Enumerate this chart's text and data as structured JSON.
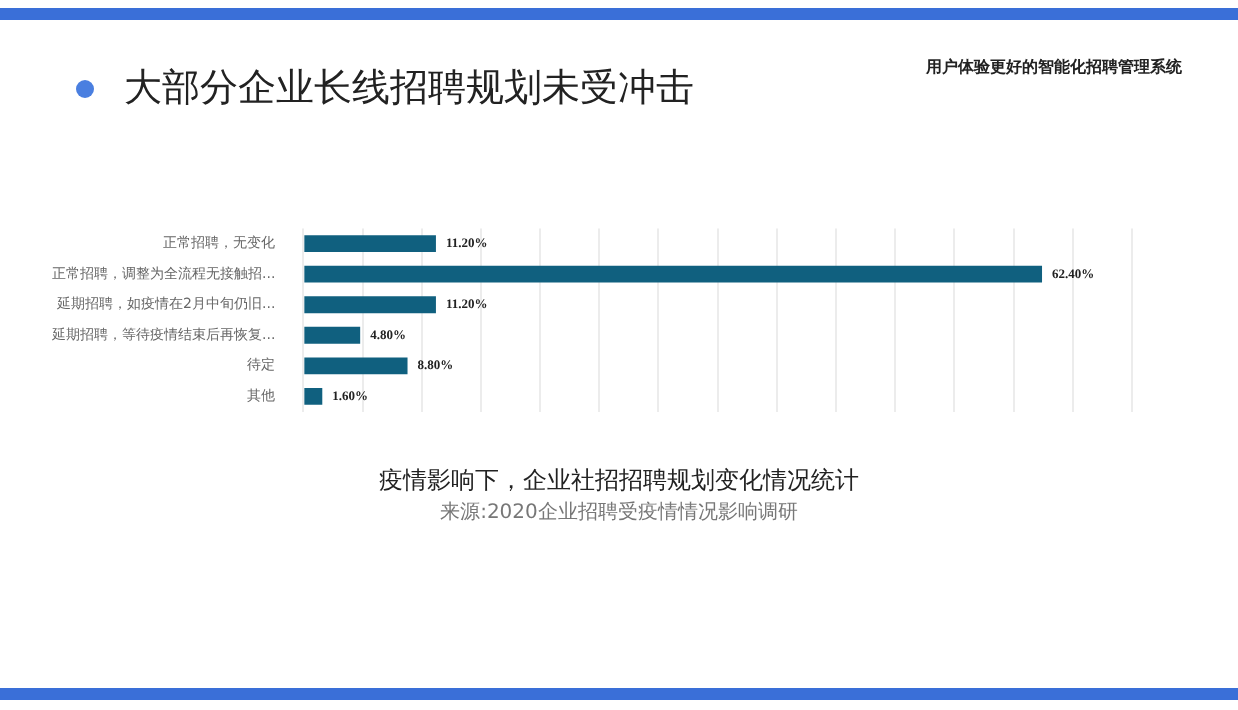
{
  "chart_data": {
    "type": "bar",
    "orientation": "horizontal",
    "title": "大部分企业长线招聘规划未受冲击",
    "categories": [
      "正常招聘，无变化",
      "正常招聘，调整为全流程无接触招...",
      "延期招聘，如疫情在2月中旬仍旧...",
      "延期招聘，等待疫情结束后再恢复...",
      "待定",
      "其他"
    ],
    "values": [
      11.2,
      62.4,
      11.2,
      4.8,
      8.8,
      1.6
    ],
    "value_labels": [
      "11.20%",
      "62.40%",
      "11.20%",
      "4.80%",
      "8.80%",
      "1.60%"
    ],
    "color": "#10607f",
    "xlim": [
      0,
      70
    ],
    "xticks": [
      {
        "value": 0,
        "label": null
      },
      {
        "value": 5,
        "label": null
      },
      {
        "value": 10,
        "label": null
      },
      {
        "value": 15,
        "label": null
      },
      {
        "value": 20,
        "label": null
      },
      {
        "value": 25,
        "label": null
      },
      {
        "value": 30,
        "label": null
      },
      {
        "value": 35,
        "label": null
      },
      {
        "value": 40,
        "label": null
      },
      {
        "value": 45,
        "label": null
      },
      {
        "value": 50,
        "label": null
      },
      {
        "value": 55,
        "label": null
      },
      {
        "value": 60,
        "label": null
      },
      {
        "value": 65,
        "label": null
      },
      {
        "value": 70,
        "label": null
      }
    ],
    "grid": "x",
    "tick_labels": "y",
    "annotations": [
      "用户体验更好的智能化招聘管理系统",
      "疫情影响下，企业社招招聘规划变化情况统计",
      "来源:2020企业招聘受疫情情况影响调研"
    ]
  }
}
